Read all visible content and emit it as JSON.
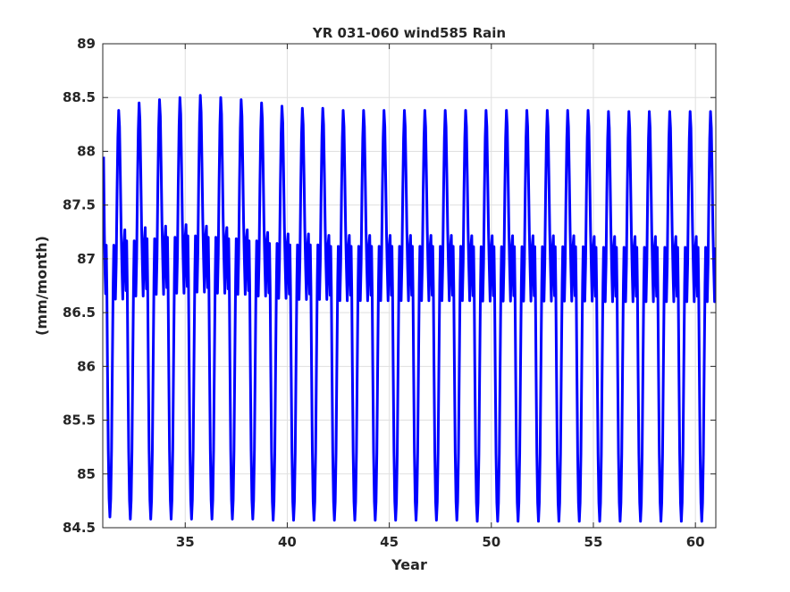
{
  "chart_data": {
    "type": "line",
    "title": "YR 031-060 wind585 Rain",
    "xlabel": "Year",
    "ylabel": "(mm/month)",
    "xlim": [
      30.96,
      61.0
    ],
    "ylim": [
      84.5,
      89
    ],
    "xticks": [
      35,
      40,
      45,
      50,
      55,
      60
    ],
    "yticks": [
      84.5,
      85,
      85.5,
      86,
      86.5,
      87,
      87.5,
      88,
      88.5,
      89
    ],
    "xtick_labels": [
      "35",
      "40",
      "45",
      "50",
      "55",
      "60"
    ],
    "ytick_labels": [
      "84.5",
      "85",
      "85.5",
      "86",
      "86.5",
      "87",
      "87.5",
      "88",
      "88.5",
      "89"
    ],
    "grid": true,
    "legend": "none",
    "series": [
      {
        "color": "#0000ff",
        "period_years": 1,
        "start_year": 31,
        "end_year": 61,
        "start_value": 87.95,
        "cycle_shape": [
          [
            0.0,
            87.95
          ],
          [
            0.04,
            87.2
          ],
          [
            0.07,
            86.85
          ],
          [
            0.1,
            86.65
          ],
          [
            0.13,
            87.1
          ],
          [
            0.16,
            86.7
          ],
          [
            0.19,
            86.0
          ],
          [
            0.23,
            85.2
          ],
          [
            0.27,
            84.75
          ],
          [
            0.31,
            84.58
          ],
          [
            0.35,
            84.75
          ],
          [
            0.39,
            85.2
          ],
          [
            0.43,
            86.0
          ],
          [
            0.47,
            86.75
          ],
          [
            0.5,
            87.1
          ],
          [
            0.54,
            86.7
          ],
          [
            0.58,
            86.6
          ],
          [
            0.62,
            86.95
          ],
          [
            0.66,
            87.6
          ],
          [
            0.7,
            88.1
          ],
          [
            0.74,
            88.35
          ],
          [
            0.78,
            88.2
          ],
          [
            0.82,
            87.75
          ],
          [
            0.86,
            87.25
          ],
          [
            0.9,
            86.9
          ],
          [
            0.94,
            86.6
          ],
          [
            0.97,
            86.9
          ],
          [
            1.0,
            87.1
          ]
        ],
        "peak_values": [
          88.38,
          88.45,
          88.48,
          88.5,
          88.52,
          88.5,
          88.48,
          88.45,
          88.42,
          88.4,
          88.4,
          88.38,
          88.38,
          88.38,
          88.38,
          88.38,
          88.38,
          88.38,
          88.38,
          88.38,
          88.38,
          88.38,
          88.38,
          88.38,
          88.37,
          88.37,
          88.37,
          88.37,
          88.37,
          88.37
        ],
        "trough_values": [
          84.6,
          84.58,
          84.58,
          84.58,
          84.58,
          84.58,
          84.58,
          84.58,
          84.57,
          84.57,
          84.57,
          84.57,
          84.57,
          84.57,
          84.57,
          84.57,
          84.57,
          84.57,
          84.56,
          84.56,
          84.56,
          84.56,
          84.56,
          84.56,
          84.56,
          84.56,
          84.56,
          84.56,
          84.56,
          84.56
        ]
      }
    ]
  }
}
